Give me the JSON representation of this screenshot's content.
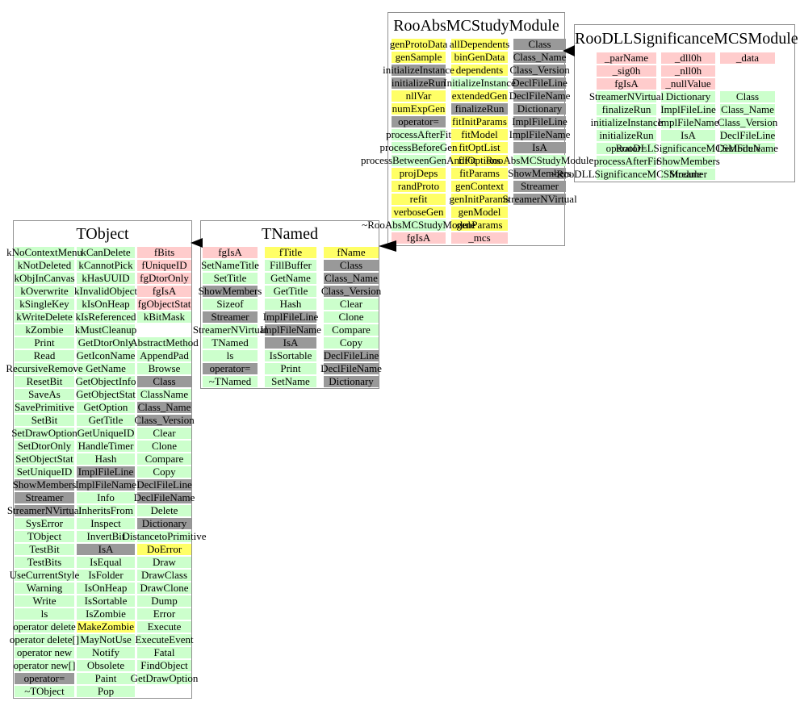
{
  "colors": {
    "g": "#ccffcc",
    "y": "#ffff66",
    "p": "#ffcccc",
    "k": "#999999"
  },
  "inheritance": [
    {
      "derived": "TNamed",
      "base": "TObject"
    },
    {
      "derived": "RooAbsMCStudyModule",
      "base": "TNamed"
    },
    {
      "derived": "RooDLLSignificanceMCSModule",
      "base": "RooAbsMCStudyModule"
    }
  ],
  "classes": [
    {
      "name": "TObject",
      "columns": [
        [
          [
            "kNoContextMenu",
            "g"
          ],
          [
            "kNotDeleted",
            "g"
          ],
          [
            "kObjInCanvas",
            "g"
          ],
          [
            "kOverwrite",
            "g"
          ],
          [
            "kSingleKey",
            "g"
          ],
          [
            "kWriteDelete",
            "g"
          ],
          [
            "kZombie",
            "g"
          ],
          [
            "Print",
            "g"
          ],
          [
            "Read",
            "g"
          ],
          [
            "RecursiveRemove",
            "g"
          ],
          [
            "ResetBit",
            "g"
          ],
          [
            "SaveAs",
            "g"
          ],
          [
            "SavePrimitive",
            "g"
          ],
          [
            "SetBit",
            "g"
          ],
          [
            "SetDrawOption",
            "g"
          ],
          [
            "SetDtorOnly",
            "g"
          ],
          [
            "SetObjectStat",
            "g"
          ],
          [
            "SetUniqueID",
            "g"
          ],
          [
            "ShowMembers",
            "k"
          ],
          [
            "Streamer",
            "k"
          ],
          [
            "StreamerNVirtual",
            "k"
          ],
          [
            "SysError",
            "g"
          ],
          [
            "TObject",
            "g"
          ],
          [
            "TestBit",
            "g"
          ],
          [
            "TestBits",
            "g"
          ],
          [
            "UseCurrentStyle",
            "g"
          ],
          [
            "Warning",
            "g"
          ],
          [
            "Write",
            "g"
          ],
          [
            "ls",
            "g"
          ],
          [
            "operator delete",
            "g"
          ],
          [
            "operator delete[]",
            "g"
          ],
          [
            "operator new",
            "g"
          ],
          [
            "operator new[]",
            "g"
          ],
          [
            "operator=",
            "k"
          ],
          [
            "~TObject",
            "g"
          ]
        ],
        [
          [
            "kCanDelete",
            "g"
          ],
          [
            "kCannotPick",
            "g"
          ],
          [
            "kHasUUID",
            "g"
          ],
          [
            "kInvalidObject",
            "g"
          ],
          [
            "kIsOnHeap",
            "g"
          ],
          [
            "kIsReferenced",
            "g"
          ],
          [
            "kMustCleanup",
            "g"
          ],
          [
            "GetDtorOnly",
            "g"
          ],
          [
            "GetIconName",
            "g"
          ],
          [
            "GetName",
            "g"
          ],
          [
            "GetObjectInfo",
            "g"
          ],
          [
            "GetObjectStat",
            "g"
          ],
          [
            "GetOption",
            "g"
          ],
          [
            "GetTitle",
            "g"
          ],
          [
            "GetUniqueID",
            "g"
          ],
          [
            "HandleTimer",
            "g"
          ],
          [
            "Hash",
            "g"
          ],
          [
            "ImplFileLine",
            "k"
          ],
          [
            "ImplFileName",
            "k"
          ],
          [
            "Info",
            "g"
          ],
          [
            "InheritsFrom",
            "g"
          ],
          [
            "Inspect",
            "g"
          ],
          [
            "InvertBit",
            "g"
          ],
          [
            "IsA",
            "k"
          ],
          [
            "IsEqual",
            "g"
          ],
          [
            "IsFolder",
            "g"
          ],
          [
            "IsOnHeap",
            "g"
          ],
          [
            "IsSortable",
            "g"
          ],
          [
            "IsZombie",
            "g"
          ],
          [
            "MakeZombie",
            "y"
          ],
          [
            "MayNotUse",
            "g"
          ],
          [
            "Notify",
            "g"
          ],
          [
            "Obsolete",
            "g"
          ],
          [
            "Paint",
            "g"
          ],
          [
            "Pop",
            "g"
          ]
        ],
        [
          [
            "fBits",
            "p"
          ],
          [
            "fUniqueID",
            "p"
          ],
          [
            "fgDtorOnly",
            "p"
          ],
          [
            "fgIsA",
            "p"
          ],
          [
            "fgObjectStat",
            "p"
          ],
          [
            "kBitMask",
            "g"
          ],
          null,
          [
            "AbstractMethod",
            "g"
          ],
          [
            "AppendPad",
            "g"
          ],
          [
            "Browse",
            "g"
          ],
          [
            "Class",
            "k"
          ],
          [
            "ClassName",
            "g"
          ],
          [
            "Class_Name",
            "k"
          ],
          [
            "Class_Version",
            "k"
          ],
          [
            "Clear",
            "g"
          ],
          [
            "Clone",
            "g"
          ],
          [
            "Compare",
            "g"
          ],
          [
            "Copy",
            "g"
          ],
          [
            "DeclFileLine",
            "k"
          ],
          [
            "DeclFileName",
            "k"
          ],
          [
            "Delete",
            "g"
          ],
          [
            "Dictionary",
            "k"
          ],
          [
            "DistancetoPrimitive",
            "g"
          ],
          [
            "DoError",
            "y"
          ],
          [
            "Draw",
            "g"
          ],
          [
            "DrawClass",
            "g"
          ],
          [
            "DrawClone",
            "g"
          ],
          [
            "Dump",
            "g"
          ],
          [
            "Error",
            "g"
          ],
          [
            "Execute",
            "g"
          ],
          [
            "ExecuteEvent",
            "g"
          ],
          [
            "Fatal",
            "g"
          ],
          [
            "FindObject",
            "g"
          ],
          [
            "GetDrawOption",
            "g"
          ],
          null
        ]
      ]
    },
    {
      "name": "TNamed",
      "columns": [
        [
          [
            "fgIsA",
            "p"
          ],
          [
            "SetNameTitle",
            "g"
          ],
          [
            "SetTitle",
            "g"
          ],
          [
            "ShowMembers",
            "k"
          ],
          [
            "Sizeof",
            "g"
          ],
          [
            "Streamer",
            "k"
          ],
          [
            "StreamerNVirtual",
            "g"
          ],
          [
            "TNamed",
            "g"
          ],
          [
            "ls",
            "g"
          ],
          [
            "operator=",
            "k"
          ],
          [
            "~TNamed",
            "g"
          ]
        ],
        [
          [
            "fTitle",
            "y"
          ],
          [
            "FillBuffer",
            "g"
          ],
          [
            "GetName",
            "g"
          ],
          [
            "GetTitle",
            "g"
          ],
          [
            "Hash",
            "g"
          ],
          [
            "ImplFileLine",
            "k"
          ],
          [
            "ImplFileName",
            "k"
          ],
          [
            "IsA",
            "k"
          ],
          [
            "IsSortable",
            "g"
          ],
          [
            "Print",
            "g"
          ],
          [
            "SetName",
            "g"
          ]
        ],
        [
          [
            "fName",
            "y"
          ],
          [
            "Class",
            "k"
          ],
          [
            "Class_Name",
            "k"
          ],
          [
            "Class_Version",
            "k"
          ],
          [
            "Clear",
            "g"
          ],
          [
            "Clone",
            "g"
          ],
          [
            "Compare",
            "g"
          ],
          [
            "Copy",
            "g"
          ],
          [
            "DeclFileLine",
            "k"
          ],
          [
            "DeclFileName",
            "k"
          ],
          [
            "Dictionary",
            "k"
          ]
        ]
      ]
    },
    {
      "name": "RooAbsMCStudyModule",
      "columns": [
        [
          [
            "genProtoData",
            "y"
          ],
          [
            "genSample",
            "y"
          ],
          [
            "initializeInstance",
            "k"
          ],
          [
            "initializeRun",
            "k"
          ],
          [
            "nllVar",
            "y"
          ],
          [
            "numExpGen",
            "y"
          ],
          [
            "operator=",
            "k"
          ],
          [
            "processAfterFit",
            "g"
          ],
          [
            "processBeforeGen",
            "g"
          ],
          [
            "processBetweenGenAndFit",
            "g"
          ],
          [
            "projDeps",
            "y"
          ],
          [
            "randProto",
            "y"
          ],
          [
            "refit",
            "y"
          ],
          [
            "verboseGen",
            "y"
          ],
          [
            "~RooAbsMCStudyModule",
            "g"
          ],
          [
            "fgIsA",
            "p"
          ]
        ],
        [
          [
            "allDependents",
            "y"
          ],
          [
            "binGenData",
            "y"
          ],
          [
            "dependents",
            "y"
          ],
          [
            "InitializeInstance",
            "g"
          ],
          [
            "extendedGen",
            "y"
          ],
          [
            "finalizeRun",
            "k"
          ],
          [
            "fitInitParams",
            "y"
          ],
          [
            "fitModel",
            "y"
          ],
          [
            "fitOptList",
            "y"
          ],
          [
            "fitOptions",
            "y"
          ],
          [
            "fitParams",
            "y"
          ],
          [
            "genContext",
            "y"
          ],
          [
            "genInitParams",
            "y"
          ],
          [
            "genModel",
            "y"
          ],
          [
            "genParams",
            "y"
          ],
          [
            "_mcs",
            "p"
          ]
        ],
        [
          [
            "Class",
            "k"
          ],
          [
            "Class_Name",
            "k"
          ],
          [
            "Class_Version",
            "k"
          ],
          [
            "DeclFileLine",
            "k"
          ],
          [
            "DeclFileName",
            "k"
          ],
          [
            "Dictionary",
            "k"
          ],
          [
            "ImplFileLine",
            "k"
          ],
          [
            "ImplFileName",
            "k"
          ],
          [
            "IsA",
            "k"
          ],
          [
            "RooAbsMCStudyModule",
            "g"
          ],
          [
            "ShowMembers",
            "k"
          ],
          [
            "Streamer",
            "k"
          ],
          [
            "StreamerNVirtual",
            "k"
          ],
          null,
          null,
          null
        ]
      ]
    },
    {
      "name": "RooDLLSignificanceMCSModule",
      "columns": [
        [
          [
            "_parName",
            "p"
          ],
          [
            "_sig0h",
            "p"
          ],
          [
            "fgIsA",
            "p"
          ],
          [
            "StreamerNVirtual",
            "g"
          ],
          [
            "finalizeRun",
            "g"
          ],
          [
            "initializeInstance",
            "g"
          ],
          [
            "initializeRun",
            "g"
          ],
          [
            "operator=",
            "g"
          ],
          [
            "processAfterFit",
            "g"
          ],
          [
            "~RooDLLSignificanceMCSModule",
            "g"
          ]
        ],
        [
          [
            "_dll0h",
            "p"
          ],
          [
            "_nll0h",
            "p"
          ],
          [
            "_nullValue",
            "p"
          ],
          [
            "Dictionary",
            "g"
          ],
          [
            "ImplFileLine",
            "g"
          ],
          [
            "ImplFileName",
            "g"
          ],
          [
            "IsA",
            "g"
          ],
          [
            "RooDLLSignificanceMCSModule",
            "g"
          ],
          [
            "ShowMembers",
            "g"
          ],
          [
            "Streamer",
            "g"
          ]
        ],
        [
          [
            "_data",
            "p"
          ],
          null,
          null,
          [
            "Class",
            "g"
          ],
          [
            "Class_Name",
            "g"
          ],
          [
            "Class_Version",
            "g"
          ],
          [
            "DeclFileLine",
            "g"
          ],
          [
            "DeclFileName",
            "g"
          ],
          null,
          null
        ]
      ]
    }
  ]
}
